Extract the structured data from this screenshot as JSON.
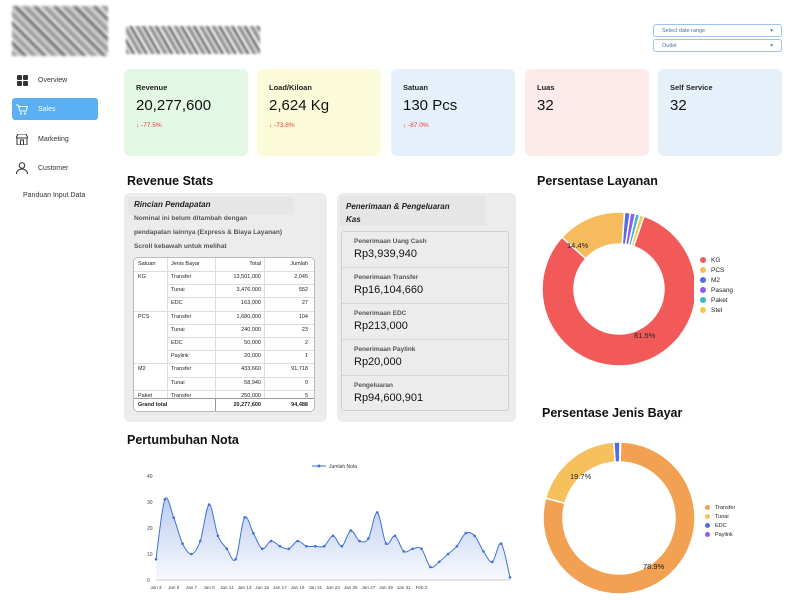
{
  "sidebar": {
    "items": [
      {
        "label": "Overview",
        "icon": "grid-icon",
        "active": false
      },
      {
        "label": "Sales",
        "icon": "cart-icon",
        "active": true
      },
      {
        "label": "Marketing",
        "icon": "store-icon",
        "active": false
      },
      {
        "label": "Customer",
        "icon": "user-icon",
        "active": false
      }
    ],
    "extra": "Panduan Input Data"
  },
  "filters": {
    "date_range": "Select date range",
    "outlet": "Outlet"
  },
  "kpis": [
    {
      "label": "Revenue",
      "value": "20,277,600",
      "change": "↓ -77.5%",
      "bg": "#e3f8e5"
    },
    {
      "label": "Load/Kiloan",
      "value": "2,624 Kg",
      "change": "↓ -73.8%",
      "bg": "#fbfbd9"
    },
    {
      "label": "Satuan",
      "value": "130 Pcs",
      "change": "↓ -87.0%",
      "bg": "#e6f0fb"
    },
    {
      "label": "Luas",
      "value": "32",
      "change": "",
      "bg": "#fdeaea"
    },
    {
      "label": "Self Service",
      "value": "32",
      "change": "",
      "bg": "#e6f0fb"
    }
  ],
  "revenue_stats": {
    "title": "Revenue Stats",
    "rincian_title": "Rincian Pendapatan",
    "note_line1": "Nominal ini belum ditambah dengan",
    "note_line2": "pendapatan lainnya (Express & Biaya Layanan)",
    "note_line3": "Scroll kebawah untuk melihat",
    "table": {
      "headers": [
        "Satuan",
        "Jenis Bayar",
        "Total",
        "Jumlah"
      ],
      "rows": [
        [
          "KG",
          "Transfer",
          "13,501,000",
          "2,045"
        ],
        [
          "",
          "Tunai",
          "3,476,000",
          "552"
        ],
        [
          "",
          "EDC",
          "163,000",
          "27"
        ],
        [
          "PCS",
          "Transfer",
          "1,680,000",
          "104"
        ],
        [
          "",
          "Tunai",
          "240,000",
          "23"
        ],
        [
          "",
          "EDC",
          "50,000",
          "2"
        ],
        [
          "",
          "Paylink",
          "20,000",
          "1"
        ],
        [
          "M2",
          "Transfer",
          "433,660",
          "91,718"
        ],
        [
          "",
          "Tunai",
          "58,940",
          "0"
        ],
        [
          "Paket",
          "Transfer",
          "250,000",
          "5"
        ]
      ],
      "total_label": "Grand total",
      "total_value": "20,277,600",
      "total_count": "94,488"
    },
    "pk_title_line1": "Penerimaan & Pengeluaran",
    "pk_title_line2": "Kas",
    "pk_items": [
      {
        "label": "Penerimaan Uang Cash",
        "value": "Rp3,939,940"
      },
      {
        "label": "Penerimaan Transfer",
        "value": "Rp16,104,660"
      },
      {
        "label": "Penerimaan EDC",
        "value": "Rp213,000"
      },
      {
        "label": "Penerimaan Paylink",
        "value": "Rp20,000"
      },
      {
        "label": "Pengeluaran",
        "value": "Rp94,600,901"
      }
    ]
  },
  "layanan": {
    "title": "Persentase Layanan",
    "label_big": "81.5%",
    "label_small": "14.4%",
    "legend": [
      {
        "name": "KG",
        "color": "#f25a5a"
      },
      {
        "name": "PCS",
        "color": "#f6bb5c"
      },
      {
        "name": "M2",
        "color": "#4f6ee0"
      },
      {
        "name": "Pasang",
        "color": "#8a5cf0"
      },
      {
        "name": "Paket",
        "color": "#3bb5d0"
      },
      {
        "name": "Stel",
        "color": "#f6c94a"
      }
    ]
  },
  "jenis_bayar": {
    "title": "Persentase Jenis Bayar",
    "label_big": "78.9%",
    "label_small": "19.7%",
    "legend": [
      {
        "name": "Transfer",
        "color": "#f2a052"
      },
      {
        "name": "Tunai",
        "color": "#f6c05c"
      },
      {
        "name": "EDC",
        "color": "#4f6ee0"
      },
      {
        "name": "Paylink",
        "color": "#8a5cf0"
      }
    ]
  },
  "pertumbuhan": {
    "title": "Pertumbuhan Nota"
  },
  "chart_data": [
    {
      "type": "line",
      "series": [
        {
          "name": "Jumlah Nota",
          "values": [
            8,
            31,
            24,
            14,
            10,
            15,
            29,
            17,
            12,
            8,
            24,
            18,
            12,
            15,
            13,
            12,
            15,
            13,
            13,
            13,
            17,
            13,
            19,
            15,
            16,
            26,
            14,
            17,
            11,
            12,
            12,
            5,
            7,
            10,
            13,
            18,
            17,
            11,
            7,
            14,
            1
          ]
        }
      ],
      "x": [
        "Jan 3",
        "Jan 4",
        "Jan 5",
        "Jan 6",
        "Jan 7",
        "Jan 8",
        "Jan 9",
        "Jan 10",
        "Jan 11",
        "Jan 12",
        "Jan 13",
        "Jan 14",
        "Jan 15",
        "Jan 16",
        "Jan 17",
        "Jan 18",
        "Jan 19",
        "Jan 20",
        "Jan 21",
        "Jan 22",
        "Jan 23",
        "Jan 24",
        "Jan 25",
        "Jan 26",
        "Jan 27",
        "Jan 28",
        "Jan 29",
        "Jan 30",
        "Jan 31",
        "Feb 1",
        "Feb 2",
        "Feb 3",
        "Feb 4",
        "Feb 5",
        "Feb 6",
        "Feb 7",
        "Feb 8",
        "Feb 9",
        "Feb 10",
        "Feb 11",
        "Feb 12"
      ],
      "tick_labels": [
        "Jan 3",
        "Jan 5",
        "Jan 7",
        "Jan 9",
        "Jan 11",
        "Jan 13",
        "Jan 15",
        "Jan 17",
        "Jan 19",
        "Jan 21",
        "Jan 23",
        "Jan 25",
        "Jan 27",
        "Jan 29",
        "Jan 31",
        "Feb 2"
      ],
      "yticks": [
        "0",
        "10",
        "20",
        "30",
        "40"
      ],
      "ylim": [
        0,
        40
      ]
    },
    {
      "type": "pie",
      "labels": [
        "KG",
        "PCS",
        "M2",
        "Pasang",
        "Paket",
        "Stel"
      ],
      "values": [
        81.5,
        14.4,
        1.2,
        1.1,
        0.9,
        0.9
      ]
    },
    {
      "type": "pie",
      "labels": [
        "Transfer",
        "Tunai",
        "EDC",
        "Paylink"
      ],
      "values": [
        78.9,
        19.7,
        1.3,
        0.1
      ]
    }
  ]
}
